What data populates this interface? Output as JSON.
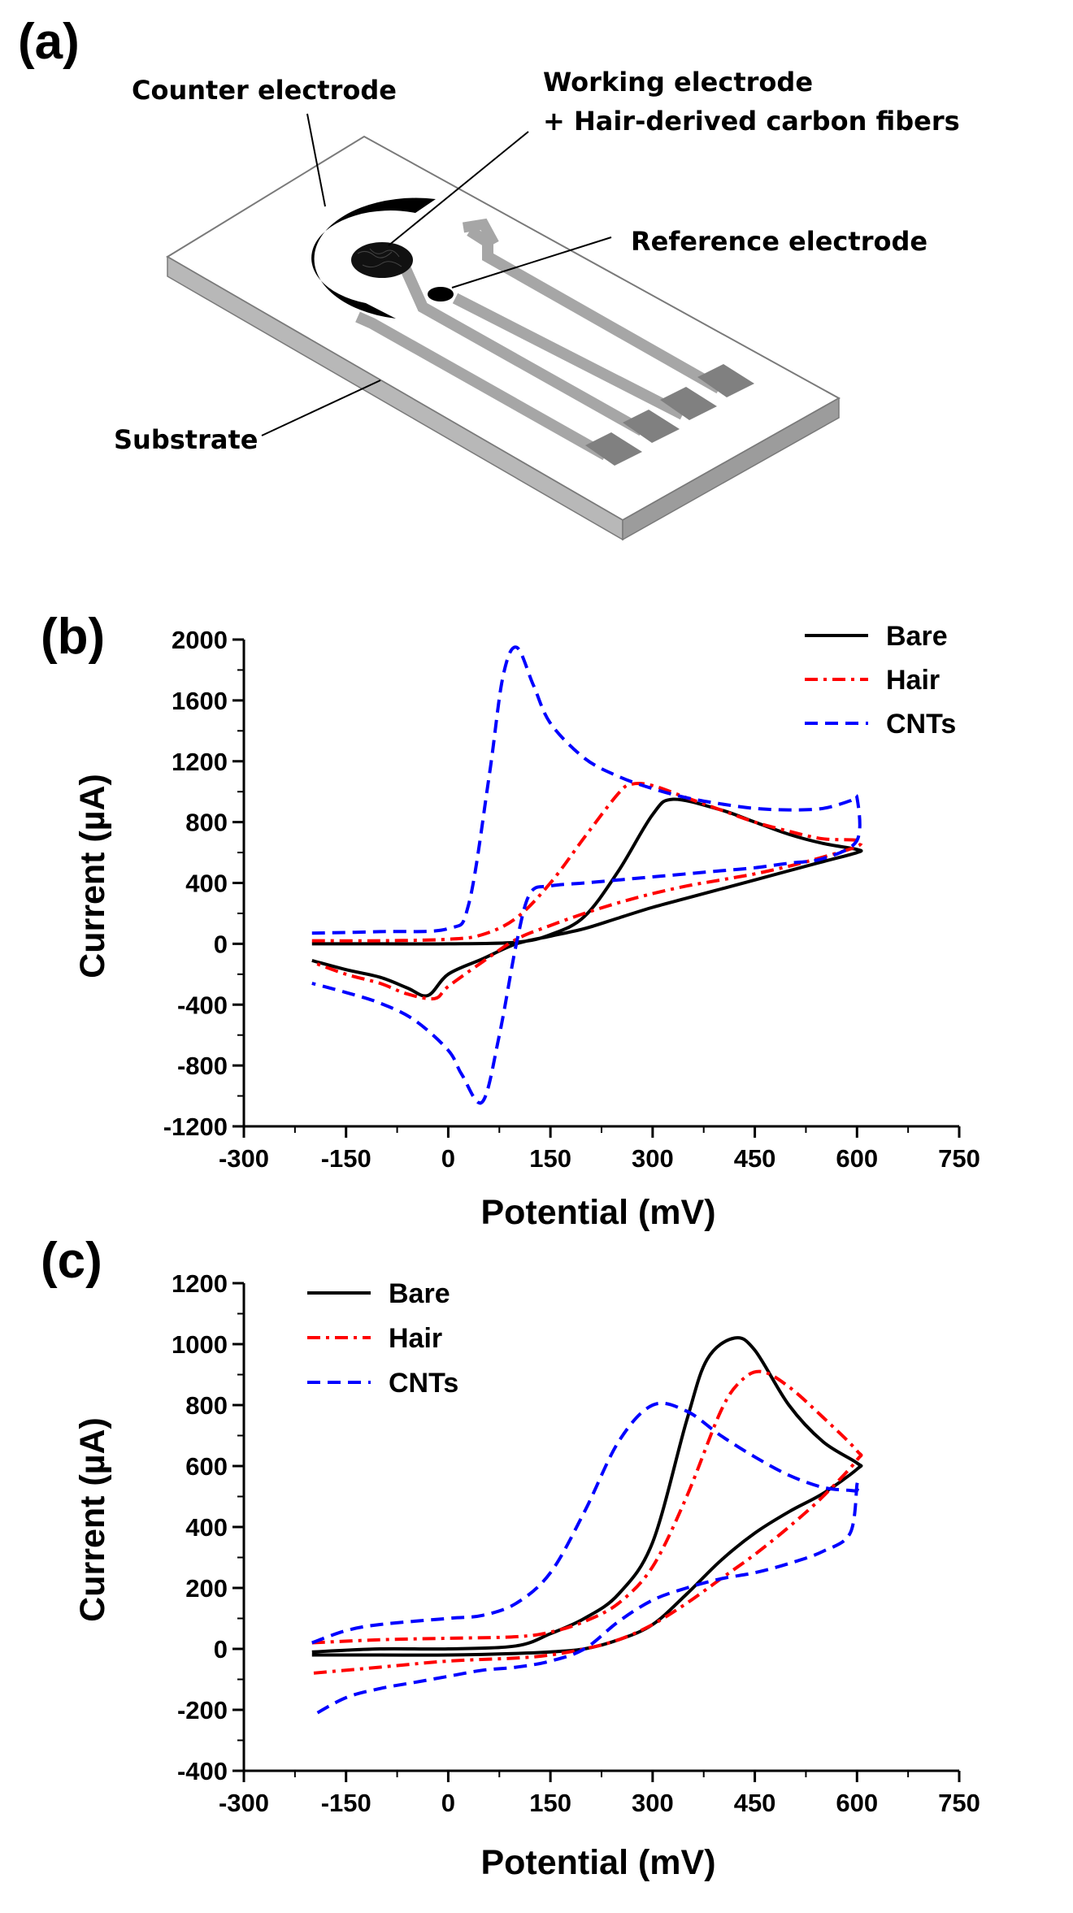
{
  "panel_a": {
    "letter": "(a)",
    "labels": {
      "counter": "Counter electrode",
      "working_line1": "Working electrode",
      "working_line2": "+ Hair-derived carbon fibers",
      "reference": "Reference electrode",
      "substrate": "Substrate"
    },
    "colors": {
      "substrate_top": "#ffffff",
      "substrate_side": "#b8b8b8",
      "trace": "#a6a6a6",
      "pad": "#808080",
      "electrode": "#000000"
    }
  },
  "chart_data": [
    {
      "panel": "(b)",
      "type": "line",
      "xlabel": "Potential (mV)",
      "ylabel": "Current (µA)",
      "xlim": [
        -300,
        750
      ],
      "ylim": [
        -1200,
        2000
      ],
      "xticks": [
        -300,
        -150,
        0,
        150,
        300,
        450,
        600,
        750
      ],
      "yticks": [
        -1200,
        -800,
        -400,
        0,
        400,
        800,
        1200,
        1600,
        2000
      ],
      "legend_position": "top-right",
      "series": [
        {
          "name": "Bare",
          "color": "#000000",
          "dash": "solid",
          "x": [
            -200,
            -100,
            0,
            100,
            150,
            200,
            250,
            300,
            330,
            400,
            450,
            500,
            550,
            600,
            600,
            550,
            500,
            450,
            400,
            350,
            300,
            250,
            200,
            150,
            100,
            50,
            0,
            -30,
            -60,
            -100,
            -150,
            -200
          ],
          "y": [
            0,
            0,
            0,
            10,
            60,
            180,
            480,
            850,
            950,
            880,
            800,
            720,
            660,
            620,
            600,
            540,
            480,
            420,
            360,
            300,
            240,
            170,
            100,
            50,
            0,
            -100,
            -200,
            -340,
            -290,
            -220,
            -170,
            -110
          ]
        },
        {
          "name": "Hair",
          "color": "#ff0000",
          "dash": "dash-dot",
          "x": [
            -200,
            -100,
            0,
            50,
            100,
            150,
            200,
            250,
            270,
            300,
            350,
            400,
            450,
            500,
            550,
            600,
            600,
            550,
            500,
            450,
            400,
            350,
            300,
            250,
            200,
            150,
            100,
            50,
            0,
            -20,
            -60,
            -100,
            -150,
            -200
          ],
          "y": [
            20,
            20,
            30,
            60,
            170,
            400,
            700,
            990,
            1050,
            1040,
            960,
            880,
            800,
            740,
            690,
            680,
            640,
            570,
            510,
            460,
            420,
            380,
            330,
            270,
            200,
            120,
            30,
            -120,
            -280,
            -360,
            -330,
            -260,
            -200,
            -120
          ]
        },
        {
          "name": "CNTs",
          "color": "#0000ff",
          "dash": "dash",
          "x": [
            -200,
            -100,
            0,
            30,
            60,
            80,
            100,
            125,
            150,
            200,
            250,
            300,
            350,
            400,
            450,
            500,
            550,
            590,
            600,
            600,
            550,
            500,
            450,
            400,
            350,
            300,
            250,
            200,
            150,
            120,
            100,
            75,
            50,
            20,
            0,
            -50,
            -100,
            -150,
            -200
          ],
          "y": [
            70,
            80,
            100,
            260,
            1100,
            1750,
            1950,
            1700,
            1450,
            1220,
            1100,
            1020,
            960,
            920,
            890,
            880,
            890,
            940,
            960,
            680,
            560,
            530,
            500,
            480,
            460,
            440,
            420,
            400,
            380,
            330,
            0,
            -600,
            -1040,
            -860,
            -700,
            -500,
            -390,
            -320,
            -260
          ]
        }
      ]
    },
    {
      "panel": "(c)",
      "type": "line",
      "xlabel": "Potential (mV)",
      "ylabel": "Current (µA)",
      "xlim": [
        -300,
        750
      ],
      "ylim": [
        -400,
        1200
      ],
      "xticks": [
        -300,
        -150,
        0,
        150,
        300,
        450,
        600,
        750
      ],
      "yticks": [
        -400,
        -200,
        0,
        200,
        400,
        600,
        800,
        1000,
        1200
      ],
      "legend_position": "top-left",
      "series": [
        {
          "name": "Bare",
          "color": "#000000",
          "dash": "solid",
          "x": [
            -200,
            -100,
            0,
            100,
            150,
            200,
            250,
            300,
            350,
            380,
            420,
            450,
            500,
            550,
            600,
            600,
            550,
            500,
            450,
            400,
            350,
            300,
            250,
            200,
            150,
            100,
            0,
            -100,
            -200
          ],
          "y": [
            -10,
            0,
            0,
            10,
            50,
            100,
            180,
            350,
            750,
            950,
            1020,
            980,
            800,
            680,
            610,
            590,
            510,
            450,
            380,
            290,
            180,
            80,
            30,
            0,
            -10,
            -15,
            -20,
            -20,
            -20
          ]
        },
        {
          "name": "Hair",
          "color": "#ff0000",
          "dash": "dash-dot",
          "x": [
            -200,
            -100,
            0,
            100,
            150,
            200,
            250,
            300,
            350,
            400,
            430,
            460,
            500,
            550,
            600,
            600,
            550,
            500,
            450,
            400,
            350,
            300,
            250,
            200,
            150,
            100,
            0,
            -100,
            -200
          ],
          "y": [
            20,
            30,
            35,
            40,
            55,
            90,
            150,
            270,
            500,
            780,
            880,
            910,
            860,
            760,
            650,
            620,
            500,
            400,
            310,
            230,
            150,
            80,
            30,
            0,
            -20,
            -30,
            -40,
            -60,
            -80
          ]
        },
        {
          "name": "CNTs",
          "color": "#0000ff",
          "dash": "dash",
          "x": [
            -200,
            -150,
            -100,
            0,
            50,
            100,
            150,
            200,
            250,
            300,
            350,
            400,
            450,
            500,
            550,
            590,
            600,
            600,
            590,
            550,
            500,
            450,
            400,
            350,
            300,
            250,
            200,
            150,
            100,
            50,
            0,
            -50,
            -100,
            -150,
            -200
          ],
          "y": [
            20,
            60,
            80,
            100,
            110,
            150,
            250,
            450,
            680,
            800,
            780,
            700,
            630,
            570,
            530,
            520,
            520,
            540,
            380,
            320,
            280,
            250,
            230,
            200,
            160,
            90,
            0,
            -40,
            -60,
            -70,
            -90,
            -110,
            -130,
            -160,
            -220
          ]
        }
      ]
    }
  ]
}
